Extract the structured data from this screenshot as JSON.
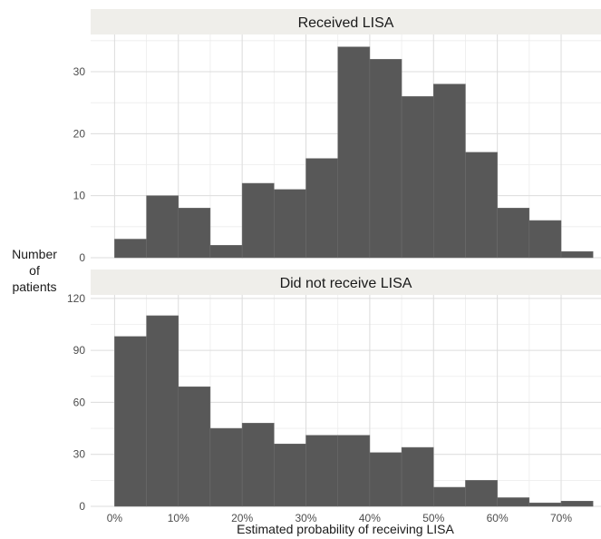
{
  "chart_data": {
    "type": "bar",
    "xlabel": "Estimated probability of receiving LISA",
    "ylabel_lines": [
      "Number",
      "of",
      "patients"
    ],
    "bin_width": 0.05,
    "x_range": [
      -0.0375,
      0.7625
    ],
    "x_ticks": [
      0,
      0.1,
      0.2,
      0.3,
      0.4,
      0.5,
      0.6,
      0.7
    ],
    "x_tick_labels": [
      "0%",
      "10%",
      "20%",
      "30%",
      "40%",
      "50%",
      "60%",
      "70%"
    ],
    "panels": [
      {
        "title": "Received LISA",
        "ylim": [
          0,
          36
        ],
        "y_ticks": [
          0,
          10,
          20,
          30
        ],
        "y_tick_labels": [
          "0",
          "10",
          "20",
          "30"
        ],
        "bins": [
          {
            "x0": 0.0,
            "count": 3
          },
          {
            "x0": 0.05,
            "count": 10
          },
          {
            "x0": 0.1,
            "count": 8
          },
          {
            "x0": 0.15,
            "count": 2
          },
          {
            "x0": 0.2,
            "count": 12
          },
          {
            "x0": 0.25,
            "count": 11
          },
          {
            "x0": 0.3,
            "count": 16
          },
          {
            "x0": 0.35,
            "count": 34
          },
          {
            "x0": 0.4,
            "count": 32
          },
          {
            "x0": 0.45,
            "count": 26
          },
          {
            "x0": 0.5,
            "count": 28
          },
          {
            "x0": 0.55,
            "count": 17
          },
          {
            "x0": 0.6,
            "count": 8
          },
          {
            "x0": 0.65,
            "count": 6
          },
          {
            "x0": 0.7,
            "count": 1
          }
        ]
      },
      {
        "title": "Did not receive LISA",
        "ylim": [
          0,
          122
        ],
        "y_ticks": [
          0,
          30,
          60,
          90,
          120
        ],
        "y_tick_labels": [
          "0",
          "30",
          "60",
          "90",
          "120"
        ],
        "bins": [
          {
            "x0": 0.0,
            "count": 98
          },
          {
            "x0": 0.05,
            "count": 110
          },
          {
            "x0": 0.1,
            "count": 69
          },
          {
            "x0": 0.15,
            "count": 45
          },
          {
            "x0": 0.2,
            "count": 48
          },
          {
            "x0": 0.25,
            "count": 36
          },
          {
            "x0": 0.3,
            "count": 41
          },
          {
            "x0": 0.35,
            "count": 41
          },
          {
            "x0": 0.4,
            "count": 31
          },
          {
            "x0": 0.45,
            "count": 34
          },
          {
            "x0": 0.5,
            "count": 11
          },
          {
            "x0": 0.55,
            "count": 15
          },
          {
            "x0": 0.6,
            "count": 5
          },
          {
            "x0": 0.65,
            "count": 2
          },
          {
            "x0": 0.7,
            "count": 3
          }
        ]
      }
    ]
  }
}
